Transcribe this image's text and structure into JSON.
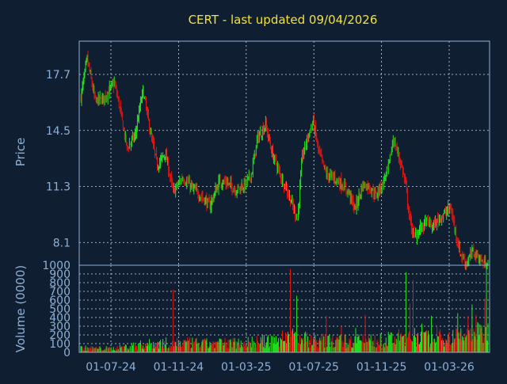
{
  "chart_data": [
    {
      "type": "candlestick",
      "title": "CERT - last updated 09/04/2026",
      "ylabel": "Price",
      "ylim": [
        6.8,
        19.6
      ],
      "yticks": [
        {
          "value": 8.1,
          "label": "8.1"
        },
        {
          "value": 11.3,
          "label": "11.3"
        },
        {
          "value": 14.5,
          "label": "14.5"
        },
        {
          "value": 17.7,
          "label": "17.7"
        }
      ],
      "xticks": [
        "01-07-24",
        "01-11-24",
        "01-03-25",
        "01-07-25",
        "01-11-25",
        "01-03-26"
      ],
      "grid": true,
      "up_color": "#22e61c",
      "down_color": "#e8140e",
      "trend": [
        [
          0,
          16.4
        ],
        [
          8,
          18.6
        ],
        [
          18,
          16.2
        ],
        [
          28,
          16.3
        ],
        [
          42,
          17.2
        ],
        [
          48,
          16.0
        ],
        [
          58,
          13.5
        ],
        [
          68,
          14.2
        ],
        [
          78,
          16.8
        ],
        [
          88,
          14.2
        ],
        [
          96,
          12.5
        ],
        [
          106,
          13.2
        ],
        [
          116,
          11.0
        ],
        [
          128,
          11.8
        ],
        [
          140,
          11.2
        ],
        [
          152,
          10.7
        ],
        [
          162,
          10.2
        ],
        [
          174,
          11.6
        ],
        [
          184,
          11.5
        ],
        [
          194,
          11.1
        ],
        [
          206,
          11.4
        ],
        [
          214,
          12.0
        ],
        [
          222,
          14.1
        ],
        [
          232,
          14.8
        ],
        [
          240,
          13.2
        ],
        [
          250,
          12.0
        ],
        [
          258,
          11.2
        ],
        [
          266,
          10.2
        ],
        [
          272,
          9.4
        ],
        [
          278,
          13.0
        ],
        [
          286,
          14.3
        ],
        [
          292,
          15.0
        ],
        [
          298,
          13.4
        ],
        [
          308,
          12.0
        ],
        [
          318,
          11.8
        ],
        [
          326,
          11.5
        ],
        [
          336,
          11.0
        ],
        [
          344,
          10.0
        ],
        [
          354,
          11.4
        ],
        [
          362,
          11.3
        ],
        [
          370,
          10.8
        ],
        [
          378,
          11.4
        ],
        [
          386,
          12.4
        ],
        [
          392,
          14.0
        ],
        [
          398,
          13.2
        ],
        [
          404,
          12.2
        ],
        [
          408,
          11.3
        ],
        [
          412,
          9.6
        ],
        [
          418,
          8.4
        ],
        [
          426,
          8.9
        ],
        [
          434,
          9.3
        ],
        [
          442,
          9.0
        ],
        [
          450,
          9.5
        ],
        [
          458,
          9.8
        ],
        [
          464,
          10.1
        ],
        [
          470,
          8.8
        ],
        [
          476,
          7.5
        ],
        [
          484,
          6.9
        ],
        [
          492,
          7.6
        ],
        [
          500,
          7.2
        ],
        [
          506,
          6.9
        ],
        [
          511,
          7.0
        ]
      ]
    },
    {
      "type": "bar",
      "ylabel": "Volume (0000)",
      "ylim": [
        0,
        1000
      ],
      "yticks": [
        {
          "value": 0,
          "label": "0"
        },
        {
          "value": 100,
          "label": "100"
        },
        {
          "value": 200,
          "label": "200"
        },
        {
          "value": 300,
          "label": "300"
        },
        {
          "value": 400,
          "label": "400"
        },
        {
          "value": 500,
          "label": "500"
        },
        {
          "value": 600,
          "label": "600"
        },
        {
          "value": 700,
          "label": "700"
        },
        {
          "value": 800,
          "label": "800"
        },
        {
          "value": 900,
          "label": "900"
        },
        {
          "value": 1000,
          "label": "1000"
        }
      ],
      "base": [
        [
          0,
          70
        ],
        [
          40,
          60
        ],
        [
          80,
          130
        ],
        [
          120,
          160
        ],
        [
          160,
          140
        ],
        [
          200,
          160
        ],
        [
          240,
          180
        ],
        [
          260,
          260
        ],
        [
          290,
          200
        ],
        [
          330,
          180
        ],
        [
          380,
          190
        ],
        [
          410,
          260
        ],
        [
          440,
          220
        ],
        [
          470,
          260
        ],
        [
          490,
          300
        ],
        [
          511,
          320
        ]
      ],
      "spikes": [
        [
          116,
          720
        ],
        [
          263,
          960
        ],
        [
          271,
          650
        ],
        [
          308,
          420
        ],
        [
          327,
          300
        ],
        [
          345,
          280
        ],
        [
          357,
          430
        ],
        [
          408,
          920
        ],
        [
          413,
          560
        ],
        [
          417,
          830
        ],
        [
          428,
          330
        ],
        [
          440,
          420
        ],
        [
          447,
          300
        ],
        [
          473,
          450
        ],
        [
          486,
          420
        ],
        [
          491,
          550
        ],
        [
          496,
          430
        ],
        [
          507,
          620
        ],
        [
          509,
          1000
        ]
      ]
    }
  ]
}
